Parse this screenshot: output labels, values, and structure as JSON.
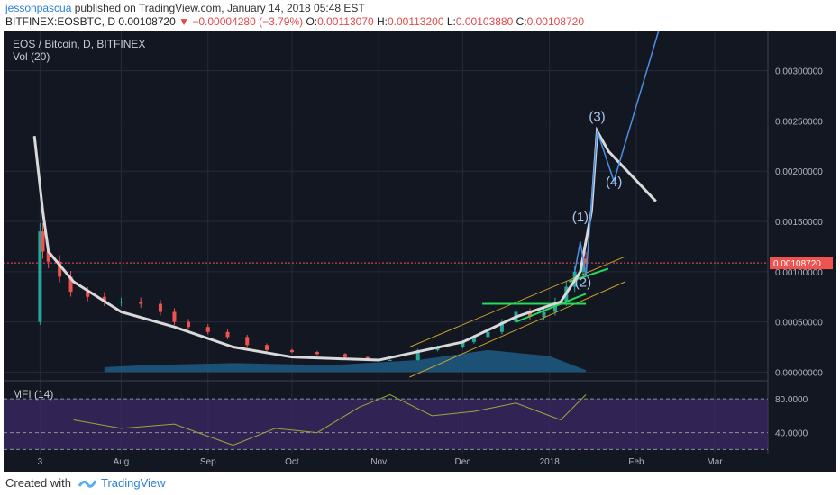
{
  "header": {
    "author": "jessonpascua",
    "published": "published on TradingView.com, January 14, 2018 05:48 EST",
    "symbol": "BITFINEX:EOSBTC, D",
    "last": "0.00108720",
    "arrow": "▼",
    "change": "−0.00004280 (−3.79%)",
    "o_label": "O:",
    "o_value": "0.00113070",
    "h_label": "H:",
    "h_value": "0.00113200",
    "l_label": "L:",
    "l_value": "0.00103880",
    "c_label": "C:",
    "c_value": "0.00108720"
  },
  "chart": {
    "symbol_label": "EOS / Bitcoin, D, BITFINEX",
    "volume_label": "Vol (20)",
    "mfi_label": "MFI (14)",
    "price_tag": "0.00108720",
    "wave_labels": [
      "(1)",
      "(2)",
      "(3)",
      "(4)"
    ]
  },
  "footer": {
    "created_with": "Created with",
    "brand": "TradingView",
    "icon": "tradingview-logo-icon"
  },
  "colors": {
    "background": "#131722",
    "up": "#26a69a",
    "down": "#ef5350",
    "ma": "#d9d9d9",
    "wave": "#4a90e2",
    "channel": "#c9a227",
    "trend": "#22dd55",
    "mfi_line": "#9aa83a",
    "mfi_band": "#3c2a66"
  },
  "chart_data": [
    {
      "type": "candlestick",
      "title": "EOS / Bitcoin, D, BITFINEX",
      "xlabel": "",
      "ylabel": "",
      "x_ticks": [
        "3",
        "Aug",
        "Sep",
        "Oct",
        "Nov",
        "Dec",
        "2018",
        "Feb",
        "Mar"
      ],
      "y_ticks": [
        0.0,
        0.0005,
        0.001,
        0.0015,
        0.002,
        0.0025,
        0.003
      ],
      "y_tick_labels": [
        "0.00000000",
        "0.00050000",
        "0.00100000",
        "0.00150000",
        "0.00200000",
        "0.00250000",
        "0.00300000"
      ],
      "ylim": [
        -5e-05,
        0.0034
      ],
      "x_range": [
        "2017-06-20",
        "2018-03-20"
      ],
      "current_price": 0.0010872,
      "grid": true,
      "series": [
        {
          "name": "Close (approx.)",
          "points": [
            [
              "2017-07-02",
              0.0005
            ],
            [
              "2017-07-03",
              0.0014
            ],
            [
              "2017-07-04",
              0.0012
            ],
            [
              "2017-07-06",
              0.0011
            ],
            [
              "2017-07-10",
              0.00095
            ],
            [
              "2017-07-14",
              0.0008
            ],
            [
              "2017-07-20",
              0.00075
            ],
            [
              "2017-07-26",
              0.0007
            ],
            [
              "2017-08-01",
              0.0007
            ],
            [
              "2017-08-08",
              0.00068
            ],
            [
              "2017-08-15",
              0.0006
            ],
            [
              "2017-08-20",
              0.0005
            ],
            [
              "2017-08-25",
              0.00045
            ],
            [
              "2017-09-01",
              0.0004
            ],
            [
              "2017-09-08",
              0.00035
            ],
            [
              "2017-09-15",
              0.00027
            ],
            [
              "2017-09-22",
              0.00022
            ],
            [
              "2017-10-01",
              0.0002
            ],
            [
              "2017-10-10",
              0.00018
            ],
            [
              "2017-10-20",
              0.00015
            ],
            [
              "2017-10-28",
              0.00012
            ],
            [
              "2017-11-05",
              0.00012
            ],
            [
              "2017-11-15",
              0.00022
            ],
            [
              "2017-11-22",
              0.00025
            ],
            [
              "2017-12-01",
              0.0003
            ],
            [
              "2017-12-05",
              0.00035
            ],
            [
              "2017-12-10",
              0.0004
            ],
            [
              "2017-12-15",
              0.0005
            ],
            [
              "2017-12-20",
              0.0006
            ],
            [
              "2017-12-25",
              0.00055
            ],
            [
              "2017-12-30",
              0.0006
            ],
            [
              "2018-01-03",
              0.0007
            ],
            [
              "2018-01-07",
              0.00085
            ],
            [
              "2018-01-10",
              0.001
            ],
            [
              "2018-01-13",
              0.00113
            ],
            [
              "2018-01-14",
              0.0010872
            ]
          ]
        },
        {
          "name": "Moving average (approx.)",
          "points": [
            [
              "2017-07-01",
              0.00235
            ],
            [
              "2017-07-02",
              0.0021
            ],
            [
              "2017-07-04",
              0.0016
            ],
            [
              "2017-07-06",
              0.0012
            ],
            [
              "2017-07-15",
              0.0009
            ],
            [
              "2017-08-01",
              0.0006
            ],
            [
              "2017-08-20",
              0.00045
            ],
            [
              "2017-09-10",
              0.00025
            ],
            [
              "2017-10-01",
              0.00015
            ],
            [
              "2017-11-01",
              0.00012
            ],
            [
              "2017-12-01",
              0.0003
            ],
            [
              "2017-12-20",
              0.00055
            ],
            [
              "2018-01-05",
              0.0007
            ],
            [
              "2018-01-12",
              0.001
            ],
            [
              "2018-01-16",
              0.0016
            ],
            [
              "2018-01-18",
              0.0024
            ],
            [
              "2018-01-22",
              0.0022
            ],
            [
              "2018-02-08",
              0.0017
            ]
          ]
        },
        {
          "name": "Elliott wave projection (approx.)",
          "points": [
            [
              "2018-01-10",
              0.001
            ],
            [
              "2018-01-12",
              0.0013
            ],
            [
              "2018-01-14",
              0.00095
            ],
            [
              "2018-01-18",
              0.0024
            ],
            [
              "2018-01-24",
              0.0019
            ],
            [
              "2018-02-09",
              0.0034
            ]
          ]
        }
      ]
    },
    {
      "type": "line",
      "title": "MFI (14)",
      "y_ticks": [
        40,
        80
      ],
      "y_tick_labels": [
        "40.0000",
        "80.0000"
      ],
      "ylim": [
        15,
        95
      ],
      "series": [
        {
          "name": "MFI",
          "points": [
            [
              "2017-07-15",
              55
            ],
            [
              "2017-08-01",
              45
            ],
            [
              "2017-08-20",
              50
            ],
            [
              "2017-09-10",
              25
            ],
            [
              "2017-09-25",
              45
            ],
            [
              "2017-10-10",
              40
            ],
            [
              "2017-10-25",
              70
            ],
            [
              "2017-11-05",
              85
            ],
            [
              "2017-11-20",
              60
            ],
            [
              "2017-12-05",
              65
            ],
            [
              "2017-12-20",
              75
            ],
            [
              "2018-01-05",
              55
            ],
            [
              "2018-01-14",
              85
            ]
          ]
        }
      ]
    }
  ]
}
